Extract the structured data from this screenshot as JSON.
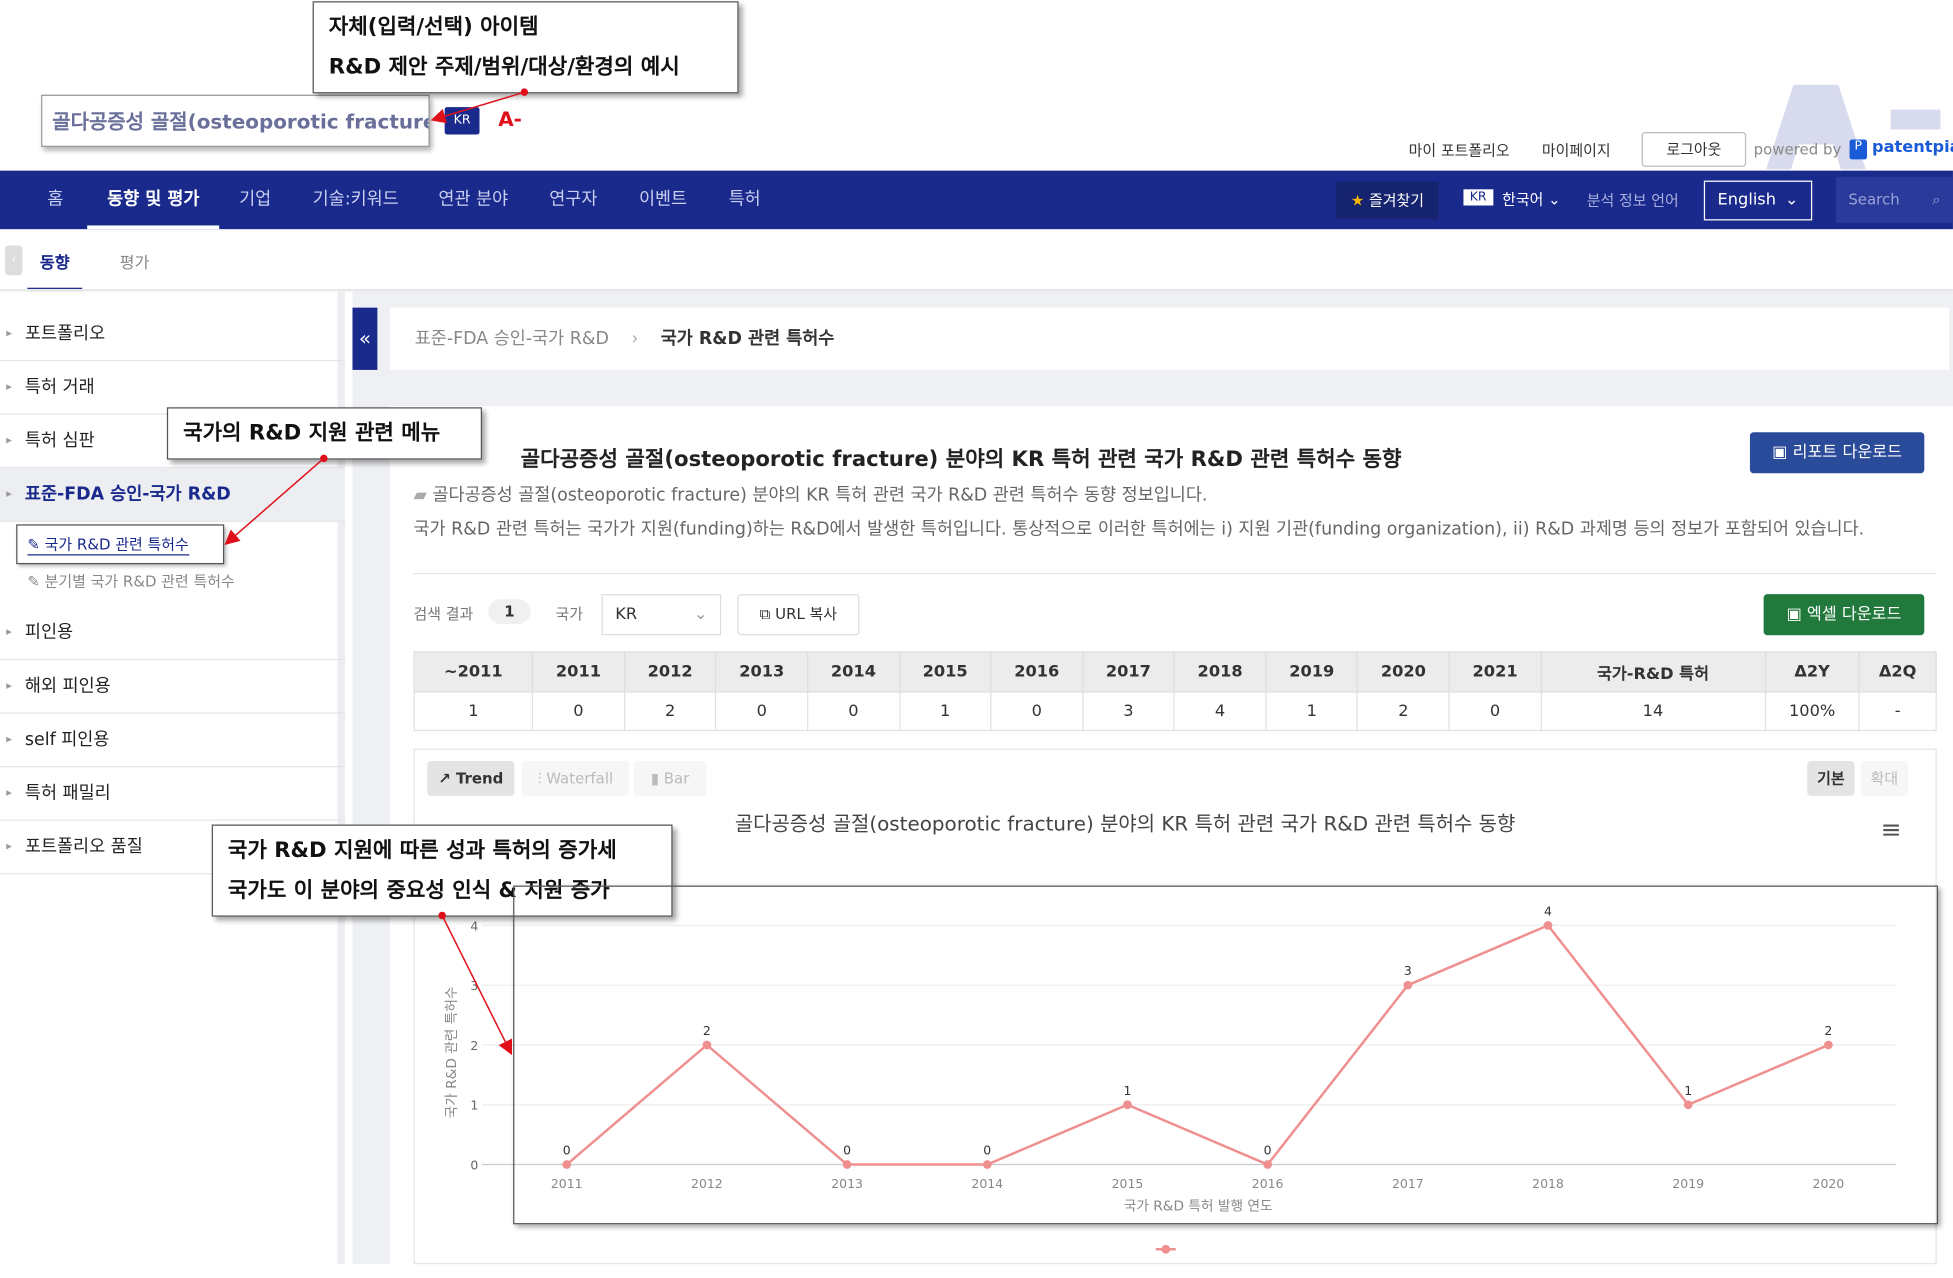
{
  "annotations": {
    "top": [
      "자체(입력/선택) 아이템",
      "R&D 제안 주제/범위/대상/환경의 예시"
    ],
    "menu": "국가의 R&D 지원 관련 메뉴",
    "chart": [
      "국가 R&D 지원에 따른 성과 특허의 증가세",
      "국가도 이 분야의 중요성 인식 & 지원 증가"
    ]
  },
  "portfolio": {
    "name": "골다공증성 골절(osteoporotic fracture)",
    "country": "KR",
    "grade": "A-"
  },
  "top_links": {
    "my_portfolio": "마이 포트폴리오",
    "my_page": "마이페이지",
    "logout": "로그아웃",
    "powered_by": "powered by",
    "brand": "patentpia"
  },
  "nav": {
    "items": [
      "홈",
      "동향 및 평가",
      "기업",
      "기술:키워드",
      "연관 분야",
      "연구자",
      "이벤트",
      "특허"
    ],
    "active": 1,
    "favorites": "즐겨찾기",
    "lang_badge": "KR",
    "lang": "한국어",
    "analysis_lang_label": "분석 정보 언어",
    "analysis_lang": "English",
    "search_placeholder": "Search"
  },
  "subtabs": {
    "items": [
      "동향",
      "평가"
    ],
    "active": 0
  },
  "sidebar": {
    "items": [
      "포트폴리오",
      "특허 거래",
      "특허 심판",
      "표준-FDA 승인-국가 R&D",
      "피인용",
      "해외 피인용",
      "self 피인용",
      "특허 패밀리",
      "포트폴리오 품질"
    ],
    "sub": [
      "국가 R&D 관련 특허수",
      "분기별 국가 R&D 관련 특허수"
    ]
  },
  "breadcrumb": [
    "표준-FDA 승인-국가 R&D",
    "국가 R&D 관련 특허수"
  ],
  "content": {
    "title": "골다공증성 골절(osteoporotic fracture) 분야의 KR 특허 관련 국가 R&D 관련 특허수 동향",
    "report_btn": "리포트 다운로드",
    "subtitle": "골다공증성 골절(osteoporotic fracture) 분야의 KR 특허 관련 국가 R&D 관련 특허수 동향 정보입니다.",
    "desc": "국가 R&D 관련 특허는 국가가 지원(funding)하는 R&D에서 발생한 특허입니다. 통상적으로 이러한 특허에는 i) 지원 기관(funding organization), ii) R&D 과제명 등의 정보가 포함되어 있습니다.",
    "result_label": "검색 결과",
    "result_count": "1",
    "country_label": "국가",
    "country_value": "KR",
    "url_copy": "URL 복사",
    "excel_btn": "엑셀 다운로드"
  },
  "table": {
    "headers": [
      "~2011",
      "2011",
      "2012",
      "2013",
      "2014",
      "2015",
      "2016",
      "2017",
      "2018",
      "2019",
      "2020",
      "2021",
      "국가-R&D 특허",
      "Δ2Y",
      "Δ2Q"
    ],
    "row": [
      "1",
      "0",
      "2",
      "0",
      "0",
      "1",
      "0",
      "3",
      "4",
      "1",
      "2",
      "0",
      "14",
      "100%",
      "-"
    ]
  },
  "chart_tabs": [
    "Trend",
    "Waterfall",
    "Bar"
  ],
  "view_tabs": [
    "기본",
    "확대"
  ],
  "colors": {
    "nav": "#1a2a8c",
    "line": "#f08f8f",
    "excel": "#217a3c",
    "report": "#2a4a9a"
  },
  "chart_data": {
    "type": "line",
    "title": "골다공증성 골절(osteoporotic fracture) 분야의 KR 특허 관련 국가 R&D 관련 특허수 동향",
    "xlabel": "국가 R&D 특허 발행 연도",
    "ylabel": "국가 R&D 관련 특허수",
    "x": [
      "2011",
      "2012",
      "2013",
      "2014",
      "2015",
      "2016",
      "2017",
      "2018",
      "2019",
      "2020"
    ],
    "values": [
      0,
      2,
      0,
      0,
      1,
      0,
      3,
      4,
      1,
      2
    ],
    "ylim": [
      0,
      4
    ],
    "yticks": [
      "0",
      "1",
      "2",
      "3",
      "4"
    ],
    "grid": true,
    "legend": "bottom"
  }
}
